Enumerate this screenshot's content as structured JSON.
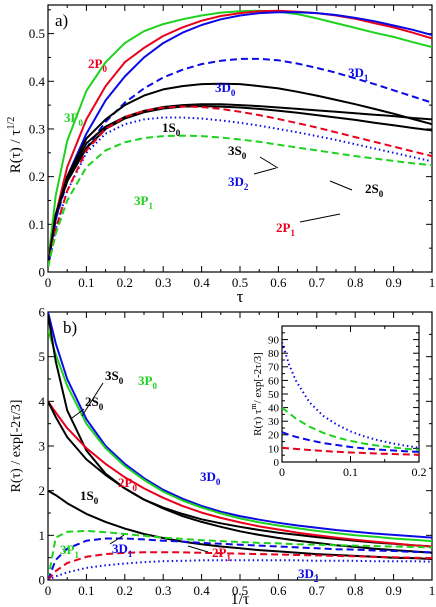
{
  "colors": {
    "black": "#000000",
    "red": "#e8001c",
    "green": "#1ed21e",
    "blue": "#0a0ae6"
  },
  "chart_data": [
    {
      "type": "line",
      "panel_label": "a)",
      "xlabel": "τ",
      "ylabel": "R(τ) / τ^1/2",
      "xlim": [
        0,
        1
      ],
      "ylim": [
        0,
        0.56
      ],
      "xticks": [
        "0",
        "0.1",
        "0.2",
        "0.3",
        "0.4",
        "0.5",
        "0.6",
        "0.7",
        "0.8",
        "0.9",
        "1"
      ],
      "yticks": [
        "0",
        "0.1",
        "0.2",
        "0.3",
        "0.4",
        "0.5"
      ],
      "x": [
        0,
        0.02,
        0.05,
        0.1,
        0.15,
        0.2,
        0.25,
        0.3,
        0.35,
        0.4,
        0.45,
        0.5,
        0.55,
        0.6,
        0.65,
        0.7,
        0.75,
        0.8,
        0.85,
        0.9,
        0.95,
        1.0
      ],
      "series": [
        {
          "name": "3P0",
          "color": "green",
          "dash": "solid",
          "values": [
            0.02,
            0.16,
            0.275,
            0.38,
            0.44,
            0.48,
            0.505,
            0.52,
            0.53,
            0.538,
            0.544,
            0.547,
            0.548,
            0.546,
            0.541,
            0.532,
            0.522,
            0.512,
            0.502,
            0.493,
            0.482,
            0.472
          ]
        },
        {
          "name": "2P0",
          "color": "red",
          "dash": "solid",
          "values": [
            0.02,
            0.12,
            0.22,
            0.32,
            0.39,
            0.44,
            0.47,
            0.495,
            0.513,
            0.527,
            0.537,
            0.543,
            0.547,
            0.548,
            0.546,
            0.543,
            0.538,
            0.531,
            0.522,
            0.513,
            0.502,
            0.49
          ]
        },
        {
          "name": "3D0",
          "color": "blue",
          "dash": "solid",
          "values": [
            0.02,
            0.11,
            0.2,
            0.29,
            0.36,
            0.41,
            0.45,
            0.48,
            0.502,
            0.518,
            0.53,
            0.538,
            0.543,
            0.545,
            0.545,
            0.543,
            0.539,
            0.533,
            0.526,
            0.517,
            0.508,
            0.497
          ]
        },
        {
          "name": "3D1",
          "color": "blue",
          "dash": "dashed",
          "values": [
            0.02,
            0.11,
            0.19,
            0.26,
            0.315,
            0.355,
            0.385,
            0.408,
            0.424,
            0.436,
            0.443,
            0.447,
            0.447,
            0.444,
            0.437,
            0.428,
            0.418,
            0.406,
            0.394,
            0.381,
            0.368,
            0.355
          ]
        },
        {
          "name": "1S0",
          "color": "black",
          "dash": "solid",
          "values": [
            0.01,
            0.12,
            0.2,
            0.28,
            0.32,
            0.35,
            0.37,
            0.383,
            0.39,
            0.394,
            0.395,
            0.394,
            0.39,
            0.385,
            0.378,
            0.37,
            0.361,
            0.352,
            0.342,
            0.332,
            0.321,
            0.31
          ]
        },
        {
          "name": "3S0",
          "color": "black",
          "dash": "solid",
          "values": [
            0.01,
            0.12,
            0.195,
            0.27,
            0.305,
            0.325,
            0.338,
            0.346,
            0.35,
            0.352,
            0.352,
            0.35,
            0.348,
            0.345,
            0.342,
            0.339,
            0.336,
            0.333,
            0.33,
            0.327,
            0.323,
            0.32
          ]
        },
        {
          "name": "2S0",
          "color": "black",
          "dash": "solid",
          "values": [
            0.01,
            0.12,
            0.19,
            0.26,
            0.3,
            0.322,
            0.335,
            0.343,
            0.347,
            0.348,
            0.347,
            0.345,
            0.342,
            0.338,
            0.334,
            0.329,
            0.324,
            0.319,
            0.313,
            0.308,
            0.302,
            0.297
          ]
        },
        {
          "name": "3D2",
          "color": "blue",
          "dash": "dotted",
          "values": [
            0.01,
            0.09,
            0.17,
            0.25,
            0.29,
            0.31,
            0.32,
            0.324,
            0.324,
            0.322,
            0.318,
            0.313,
            0.307,
            0.3,
            0.293,
            0.285,
            0.277,
            0.268,
            0.259,
            0.25,
            0.241,
            0.232
          ]
        },
        {
          "name": "2P1",
          "color": "red",
          "dash": "dashed",
          "values": [
            0.01,
            0.09,
            0.17,
            0.255,
            0.3,
            0.325,
            0.338,
            0.345,
            0.347,
            0.346,
            0.342,
            0.336,
            0.329,
            0.321,
            0.312,
            0.303,
            0.293,
            0.283,
            0.273,
            0.263,
            0.253,
            0.243
          ]
        },
        {
          "name": "3P1",
          "color": "green",
          "dash": "dashed",
          "values": [
            0.01,
            0.08,
            0.15,
            0.22,
            0.255,
            0.272,
            0.281,
            0.285,
            0.286,
            0.285,
            0.282,
            0.278,
            0.273,
            0.267,
            0.261,
            0.255,
            0.249,
            0.243,
            0.238,
            0.233,
            0.228,
            0.224
          ]
        }
      ]
    },
    {
      "type": "line",
      "panel_label": "b)",
      "xlabel": "1/τ",
      "ylabel": "R(τ) / exp[-2τ/3]",
      "xlim": [
        0,
        1
      ],
      "ylim": [
        0,
        6
      ],
      "xticks": [
        "0",
        "0.1",
        "0.2",
        "0.3",
        "0.4",
        "0.5",
        "0.6",
        "0.7",
        "0.8",
        "0.9",
        "1"
      ],
      "yticks": [
        "0",
        "1",
        "2",
        "3",
        "4",
        "5",
        "6"
      ],
      "x": [
        0,
        0.02,
        0.05,
        0.1,
        0.15,
        0.2,
        0.25,
        0.3,
        0.35,
        0.4,
        0.45,
        0.5,
        0.55,
        0.6,
        0.65,
        0.7,
        0.75,
        0.8,
        0.85,
        0.9,
        0.95,
        1.0
      ],
      "series": [
        {
          "name": "3D0",
          "color": "blue",
          "dash": "solid",
          "values": [
            6.0,
            5.3,
            4.5,
            3.6,
            3.0,
            2.6,
            2.28,
            2.02,
            1.82,
            1.66,
            1.53,
            1.43,
            1.35,
            1.28,
            1.22,
            1.17,
            1.12,
            1.08,
            1.04,
            1.01,
            0.98,
            0.95
          ]
        },
        {
          "name": "3P0",
          "color": "green",
          "dash": "solid",
          "values": [
            5.6,
            5.05,
            4.35,
            3.5,
            2.95,
            2.55,
            2.24,
            1.98,
            1.78,
            1.62,
            1.49,
            1.38,
            1.29,
            1.22,
            1.16,
            1.1,
            1.05,
            1.0,
            0.97,
            0.93,
            0.9,
            0.87
          ]
        },
        {
          "name": "3S0",
          "color": "black",
          "dash": "solid",
          "values": [
            5.95,
            4.9,
            3.8,
            2.9,
            2.38,
            2.05,
            1.8,
            1.62,
            1.48,
            1.36,
            1.27,
            1.19,
            1.12,
            1.06,
            1.01,
            0.96,
            0.92,
            0.88,
            0.84,
            0.81,
            0.78,
            0.75
          ]
        },
        {
          "name": "2P0",
          "color": "red",
          "dash": "solid",
          "values": [
            4.0,
            3.75,
            3.4,
            2.95,
            2.6,
            2.3,
            2.05,
            1.84,
            1.66,
            1.51,
            1.39,
            1.29,
            1.2,
            1.13,
            1.06,
            1.0,
            0.95,
            0.9,
            0.86,
            0.82,
            0.78,
            0.75
          ]
        },
        {
          "name": "2S0",
          "color": "black",
          "dash": "solid",
          "values": [
            4.0,
            3.65,
            3.2,
            2.7,
            2.35,
            2.05,
            1.8,
            1.6,
            1.43,
            1.3,
            1.19,
            1.09,
            1.01,
            0.94,
            0.88,
            0.83,
            0.78,
            0.74,
            0.7,
            0.67,
            0.64,
            0.61
          ]
        },
        {
          "name": "1S0",
          "color": "black",
          "dash": "solid",
          "values": [
            2.0,
            1.9,
            1.72,
            1.48,
            1.3,
            1.15,
            1.03,
            0.94,
            0.86,
            0.8,
            0.75,
            0.71,
            0.67,
            0.64,
            0.61,
            0.58,
            0.56,
            0.54,
            0.52,
            0.5,
            0.49,
            0.47
          ]
        },
        {
          "name": "3P1",
          "color": "green",
          "dash": "dashed",
          "values": [
            0.0,
            0.95,
            1.08,
            1.1,
            1.07,
            1.03,
            0.99,
            0.95,
            0.92,
            0.89,
            0.87,
            0.85,
            0.83,
            0.82,
            0.8,
            0.79,
            0.78,
            0.77,
            0.76,
            0.75,
            0.74,
            0.73
          ]
        },
        {
          "name": "3D1",
          "color": "blue",
          "dash": "dashed",
          "values": [
            0.0,
            0.45,
            0.7,
            0.88,
            0.93,
            0.93,
            0.91,
            0.88,
            0.86,
            0.83,
            0.81,
            0.79,
            0.77,
            0.75,
            0.73,
            0.71,
            0.69,
            0.68,
            0.66,
            0.65,
            0.63,
            0.62
          ]
        },
        {
          "name": "2P1",
          "color": "red",
          "dash": "dashed",
          "values": [
            0.0,
            0.2,
            0.38,
            0.52,
            0.58,
            0.61,
            0.62,
            0.62,
            0.62,
            0.61,
            0.6,
            0.59,
            0.58,
            0.57,
            0.56,
            0.55,
            0.54,
            0.53,
            0.52,
            0.51,
            0.5,
            0.49
          ]
        },
        {
          "name": "3D2",
          "color": "blue",
          "dash": "dotted",
          "values": [
            0.0,
            0.08,
            0.17,
            0.27,
            0.33,
            0.37,
            0.4,
            0.42,
            0.43,
            0.44,
            0.44,
            0.44,
            0.44,
            0.44,
            0.44,
            0.43,
            0.43,
            0.43,
            0.42,
            0.42,
            0.42,
            0.41
          ]
        }
      ]
    },
    {
      "type": "line",
      "panel_label": "inset",
      "xlabel": "",
      "ylabel": "R(τ) τ^m / exp[-2τ/3]",
      "xlim": [
        0,
        0.2
      ],
      "ylim": [
        0,
        100
      ],
      "xticks": [
        "0",
        "0.1",
        "0.2"
      ],
      "yticks": [
        "0",
        "10",
        "20",
        "30",
        "40",
        "50",
        "60",
        "70",
        "80",
        "90"
      ],
      "x": [
        0,
        0.01,
        0.02,
        0.04,
        0.06,
        0.08,
        0.1,
        0.12,
        0.14,
        0.16,
        0.18,
        0.2
      ],
      "series": [
        {
          "name": "3D2",
          "color": "blue",
          "dash": "dotted",
          "values": [
            88,
            72,
            60,
            44,
            34,
            27.5,
            22.5,
            18.8,
            16,
            13.8,
            12,
            10.5
          ]
        },
        {
          "name": "3P1",
          "color": "green",
          "dash": "dashed",
          "values": [
            40,
            36,
            32,
            26,
            21.5,
            18,
            15.5,
            13.5,
            12,
            10.8,
            9.8,
            9
          ]
        },
        {
          "name": "3D1",
          "color": "blue",
          "dash": "dashed",
          "values": [
            22,
            20,
            18.5,
            16,
            14,
            12.5,
            11,
            10,
            9.2,
            8.5,
            7.9,
            7.4
          ]
        },
        {
          "name": "2P1",
          "color": "red",
          "dash": "dashed",
          "values": [
            10.5,
            10,
            9.6,
            8.8,
            8.1,
            7.5,
            7.0,
            6.6,
            6.2,
            5.9,
            5.6,
            5.3
          ]
        }
      ]
    }
  ],
  "labels_a": [
    {
      "t1": "3P",
      "t2": "0",
      "color": "green"
    },
    {
      "t1": "2P",
      "t2": "0",
      "color": "red"
    },
    {
      "t1": "3D",
      "t2": "0",
      "color": "blue"
    },
    {
      "t1": "3D",
      "t2": "1",
      "color": "blue"
    },
    {
      "t1": "1S",
      "t2": "0",
      "color": "black"
    },
    {
      "t1": "3S",
      "t2": "0",
      "color": "black"
    },
    {
      "t1": "3D",
      "t2": "2",
      "color": "blue"
    },
    {
      "t1": "2S",
      "t2": "0",
      "color": "black"
    },
    {
      "t1": "3P",
      "t2": "1",
      "color": "green"
    },
    {
      "t1": "2P",
      "t2": "1",
      "color": "red"
    }
  ],
  "labels_b": [
    {
      "t1": "3S",
      "t2": "0",
      "color": "black"
    },
    {
      "t1": "3P",
      "t2": "0",
      "color": "green"
    },
    {
      "t1": "2S",
      "t2": "0",
      "color": "black"
    },
    {
      "t1": "3D",
      "t2": "0",
      "color": "blue"
    },
    {
      "t1": "2P",
      "t2": "0",
      "color": "red"
    },
    {
      "t1": "1S",
      "t2": "0",
      "color": "black"
    },
    {
      "t1": "3P",
      "t2": "1",
      "color": "green"
    },
    {
      "t1": "3D",
      "t2": "1",
      "color": "blue"
    },
    {
      "t1": "2P",
      "t2": "1",
      "color": "red"
    },
    {
      "t1": "3D",
      "t2": "2",
      "color": "blue"
    }
  ]
}
